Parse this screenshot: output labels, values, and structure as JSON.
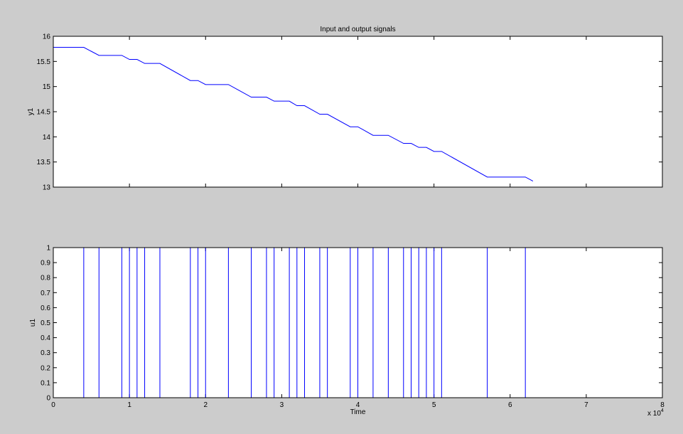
{
  "chart_data": [
    {
      "type": "line",
      "title": "Input and output signals",
      "xlabel": "",
      "ylabel": "y1",
      "xlim": [
        0,
        80000
      ],
      "ylim": [
        13,
        16
      ],
      "xticks": [
        0,
        10000,
        20000,
        30000,
        40000,
        50000,
        60000,
        70000,
        80000
      ],
      "xtick_labels": [
        "",
        "",
        "",
        "",
        "",
        "",
        "",
        "",
        ""
      ],
      "yticks": [
        13,
        13.5,
        14,
        14.5,
        15,
        15.5,
        16
      ],
      "ytick_labels": [
        "13",
        "13.5",
        "14",
        "14.5",
        "15",
        "15.5",
        "16"
      ],
      "grid": false,
      "color": "#0000ff",
      "series": [
        {
          "x": [
            0,
            4000,
            6000,
            9000,
            10000,
            11000,
            12000,
            14000,
            18000,
            19000,
            20000,
            23000,
            26000,
            28000,
            29000,
            31000,
            32000,
            33000,
            35000,
            36000,
            39000,
            40000,
            42000,
            44000,
            46000,
            47000,
            48000,
            49000,
            50000,
            51000,
            57000,
            62000,
            63000
          ],
          "y": [
            15.78,
            15.78,
            15.62,
            15.62,
            15.54,
            15.54,
            15.46,
            15.46,
            15.12,
            15.12,
            15.04,
            15.04,
            14.79,
            14.79,
            14.71,
            14.71,
            14.62,
            14.62,
            14.45,
            14.45,
            14.2,
            14.2,
            14.03,
            14.03,
            13.87,
            13.87,
            13.79,
            13.79,
            13.71,
            13.71,
            13.2,
            13.2,
            13.12
          ]
        }
      ]
    },
    {
      "type": "line",
      "title": "",
      "xlabel": "Time",
      "ylabel": "u1",
      "xlim": [
        0,
        80000
      ],
      "ylim": [
        0,
        1
      ],
      "xticks": [
        0,
        10000,
        20000,
        30000,
        40000,
        50000,
        60000,
        70000,
        80000
      ],
      "xtick_labels": [
        "0",
        "1",
        "2",
        "3",
        "4",
        "5",
        "6",
        "7",
        "8"
      ],
      "x_multiplier": "x 10",
      "x_multiplier_exp": "4",
      "yticks": [
        0,
        0.1,
        0.2,
        0.3,
        0.4,
        0.5,
        0.6,
        0.7,
        0.8,
        0.9,
        1
      ],
      "ytick_labels": [
        "0",
        "0.1",
        "0.2",
        "0.3",
        "0.4",
        "0.5",
        "0.6",
        "0.7",
        "0.8",
        "0.9",
        "1"
      ],
      "grid": false,
      "color": "#0000ff",
      "series": [
        {
          "x": [
            0,
            4000,
            4000,
            6000,
            6000,
            9000,
            9000,
            10000,
            10000,
            11000,
            11000,
            12000,
            12000,
            14000,
            14000,
            18000,
            18000,
            19000,
            19000,
            20000,
            20000,
            23000,
            23000,
            26000,
            26000,
            28000,
            28000,
            29000,
            29000,
            31000,
            31000,
            32000,
            32000,
            33000,
            33000,
            35000,
            35000,
            36000,
            36000,
            39000,
            39000,
            40000,
            40000,
            42000,
            42000,
            44000,
            44000,
            46000,
            46000,
            47000,
            47000,
            48000,
            48000,
            49000,
            49000,
            50000,
            50000,
            51000,
            51000,
            57000,
            57000,
            62000,
            62000
          ],
          "y": [
            0,
            0,
            1,
            1,
            0,
            0,
            1,
            1,
            0,
            0,
            1,
            1,
            0,
            0,
            1,
            1,
            0,
            0,
            1,
            1,
            0,
            0,
            1,
            1,
            0,
            0,
            1,
            1,
            0,
            0,
            1,
            1,
            0,
            0,
            1,
            1,
            0,
            0,
            1,
            1,
            0,
            0,
            1,
            1,
            0,
            0,
            1,
            1,
            0,
            0,
            1,
            1,
            0,
            0,
            1,
            1,
            0,
            0,
            1,
            1,
            0,
            0,
            1
          ]
        }
      ]
    }
  ]
}
